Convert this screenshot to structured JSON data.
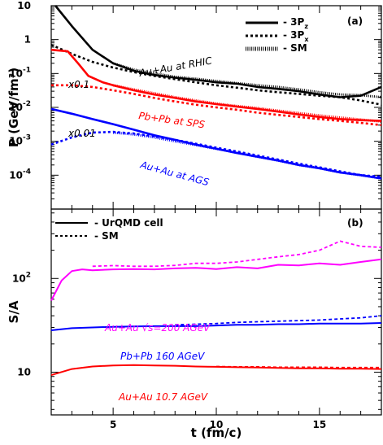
{
  "chart_data": [
    {
      "panel": "(a)",
      "type": "line",
      "xlim": [
        2,
        18
      ],
      "yscale": "log",
      "ylim": [
        1e-05,
        10
      ],
      "ylabel": "P (GeV/fm³)",
      "legend_placement": "top-right",
      "legend": [
        {
          "label": "- 3P",
          "sub": "z",
          "style": "solid"
        },
        {
          "label": "- 3P",
          "sub": "x",
          "style": "dashed"
        },
        {
          "label": "- SM",
          "style": "dotted"
        }
      ],
      "ytick_labels": [
        {
          "base": "10",
          "exp": ""
        },
        {
          "base": "1",
          "exp": ""
        },
        {
          "base": "10",
          "exp": "-1"
        },
        {
          "base": "10",
          "exp": "-2"
        },
        {
          "base": "10",
          "exp": "-3"
        },
        {
          "base": "10",
          "exp": "-4"
        }
      ],
      "annotations": [
        {
          "text": "Au+Au at RHIC",
          "color": "#000000"
        },
        {
          "text": "Pb+Pb at SPS",
          "color": "#ff0000"
        },
        {
          "text": "Au+Au at AGS",
          "color": "#0000ff"
        },
        {
          "text": "x0.1",
          "color": "#000000"
        },
        {
          "text": "x0.01",
          "color": "#000000"
        }
      ],
      "series": [
        {
          "group": "RHIC",
          "kind": "3Pz",
          "color": "#000000",
          "x": [
            2.2,
            3,
            4,
            5,
            6,
            7,
            8,
            9,
            10,
            11,
            12,
            13,
            14,
            15,
            16,
            17,
            18
          ],
          "y": [
            12,
            2.5,
            0.5,
            0.2,
            0.12,
            0.09,
            0.075,
            0.065,
            0.055,
            0.05,
            0.04,
            0.035,
            0.03,
            0.024,
            0.02,
            0.022,
            0.04
          ]
        },
        {
          "group": "RHIC",
          "kind": "3Px",
          "color": "#000000",
          "x": [
            2,
            3,
            4,
            5,
            6,
            7,
            8,
            9,
            10,
            11,
            12,
            13,
            14,
            15,
            16,
            17,
            18
          ],
          "y": [
            0.7,
            0.38,
            0.22,
            0.15,
            0.11,
            0.085,
            0.068,
            0.055,
            0.045,
            0.038,
            0.032,
            0.028,
            0.025,
            0.022,
            0.02,
            0.016,
            0.012
          ]
        },
        {
          "group": "RHIC",
          "kind": "SM",
          "color": "#000000",
          "x": [
            5,
            6,
            7,
            8,
            9,
            10,
            11,
            12,
            13,
            14,
            15,
            16,
            17,
            18
          ],
          "y": [
            0.2,
            0.13,
            0.1,
            0.08,
            0.07,
            0.06,
            0.052,
            0.045,
            0.04,
            0.034,
            0.028,
            0.024,
            0.023,
            0.02
          ]
        },
        {
          "group": "SPS",
          "kind": "3Pz",
          "color": "#ff0000",
          "x": [
            2,
            2.8,
            3.3,
            3.8,
            4.5,
            5,
            6,
            7,
            8,
            9,
            10,
            11,
            12,
            13,
            14,
            15,
            16,
            17,
            18
          ],
          "y": [
            0.5,
            0.45,
            0.2,
            0.085,
            0.055,
            0.045,
            0.032,
            0.024,
            0.019,
            0.015,
            0.0125,
            0.0105,
            0.009,
            0.0075,
            0.0062,
            0.0052,
            0.0045,
            0.0042,
            0.004
          ]
        },
        {
          "group": "SPS",
          "kind": "3Px",
          "color": "#ff0000",
          "x": [
            2,
            3,
            4,
            5,
            6,
            7,
            8,
            9,
            10,
            11,
            12,
            13,
            14,
            15,
            16,
            17,
            18
          ],
          "y": [
            0.045,
            0.045,
            0.04,
            0.032,
            0.025,
            0.019,
            0.015,
            0.012,
            0.01,
            0.0085,
            0.007,
            0.006,
            0.0052,
            0.0045,
            0.004,
            0.0035,
            0.003
          ]
        },
        {
          "group": "SPS",
          "kind": "SM",
          "color": "#ff0000",
          "x": [
            5,
            6,
            7,
            8,
            9,
            10,
            11,
            12,
            13,
            14,
            15,
            16,
            17,
            18
          ],
          "y": [
            0.045,
            0.034,
            0.026,
            0.02,
            0.016,
            0.013,
            0.011,
            0.0095,
            0.008,
            0.0068,
            0.0058,
            0.005,
            0.0044,
            0.0038
          ]
        },
        {
          "group": "AGS",
          "kind": "3Pz",
          "color": "#0000ff",
          "x": [
            2,
            3,
            4,
            5,
            6,
            7,
            8,
            9,
            10,
            11,
            12,
            13,
            14,
            15,
            16,
            17,
            18
          ],
          "y": [
            0.009,
            0.0065,
            0.0045,
            0.0032,
            0.0022,
            0.0015,
            0.0011,
            0.0008,
            0.0006,
            0.00045,
            0.00035,
            0.00027,
            0.0002,
            0.00016,
            0.00012,
            0.0001,
            8e-05
          ]
        },
        {
          "group": "AGS",
          "kind": "3Px",
          "color": "#0000ff",
          "x": [
            2,
            3,
            4,
            5,
            6,
            7,
            8,
            9,
            10,
            11,
            12,
            13,
            14,
            15,
            16,
            17,
            18
          ],
          "y": [
            0.0008,
            0.0013,
            0.0018,
            0.0019,
            0.0017,
            0.0014,
            0.0011,
            0.00085,
            0.00065,
            0.0005,
            0.00038,
            0.00029,
            0.00022,
            0.00017,
            0.00013,
            0.0001,
            9e-05
          ]
        },
        {
          "group": "AGS",
          "kind": "SM",
          "color": "#0000ff",
          "x": [
            5,
            6,
            7,
            8,
            9,
            10,
            11,
            12,
            13,
            14,
            15,
            16,
            17,
            18
          ],
          "y": [
            0.0018,
            0.0016,
            0.0013,
            0.001,
            0.00078,
            0.0006,
            0.00046,
            0.00035,
            0.00027,
            0.0002,
            0.00016,
            0.00012,
            0.0001,
            8e-05
          ]
        }
      ]
    },
    {
      "panel": "(b)",
      "type": "line",
      "xlim": [
        2,
        18
      ],
      "yscale": "log",
      "ylim": [
        3.5,
        550
      ],
      "ylabel": "S/A",
      "xlabel": "t (fm/c)",
      "xtick_labels": [
        "5",
        "10",
        "15"
      ],
      "legend_placement": "top-left",
      "legend": [
        {
          "label": "- UrQMD cell",
          "style": "solid"
        },
        {
          "label": "- SM",
          "style": "dashed"
        }
      ],
      "ytick_labels": [
        {
          "base": "10",
          "exp": "2"
        },
        {
          "base": "10",
          "exp": ""
        }
      ],
      "annotations": [
        {
          "text": "Au+Au  √s=200 AGeV",
          "color": "#ff00ff"
        },
        {
          "text": "Pb+Pb 160 AGeV",
          "color": "#0000ff"
        },
        {
          "text": "Au+Au 10.7 AGeV",
          "color": "#ff0000"
        }
      ],
      "series": [
        {
          "group": "200 AGeV",
          "kind": "UrQMD cell",
          "color": "#ff00ff",
          "x": [
            2,
            2.5,
            3,
            3.5,
            4,
            5,
            6,
            7,
            8,
            9,
            10,
            11,
            12,
            13,
            14,
            15,
            16,
            17,
            18
          ],
          "y": [
            58,
            95,
            120,
            125,
            122,
            125,
            126,
            125,
            128,
            130,
            126,
            132,
            128,
            140,
            138,
            145,
            140,
            150,
            160
          ]
        },
        {
          "group": "200 AGeV",
          "kind": "SM",
          "color": "#ff00ff",
          "x": [
            4,
            5,
            6,
            7,
            8,
            9,
            10,
            11,
            12,
            13,
            14,
            15,
            16,
            17,
            18
          ],
          "y": [
            135,
            137,
            135,
            135,
            138,
            145,
            145,
            150,
            160,
            170,
            180,
            200,
            250,
            220,
            215
          ]
        },
        {
          "group": "160 AGeV",
          "kind": "UrQMD cell",
          "color": "#0000ff",
          "x": [
            2,
            3,
            4,
            5,
            6,
            7,
            8,
            9,
            10,
            11,
            12,
            13,
            14,
            15,
            16,
            17,
            18
          ],
          "y": [
            28,
            29.5,
            30,
            30.5,
            30.8,
            31,
            31,
            31,
            31.5,
            32,
            32,
            32.5,
            32.5,
            33,
            33,
            33,
            33.5
          ]
        },
        {
          "group": "160 AGeV",
          "kind": "SM",
          "color": "#0000ff",
          "x": [
            8,
            9,
            10,
            11,
            12,
            13,
            14,
            15,
            16,
            17,
            18
          ],
          "y": [
            32,
            32.5,
            33,
            34,
            34.5,
            35,
            35.5,
            36,
            37,
            38,
            40
          ]
        },
        {
          "group": "10.7 AGeV",
          "kind": "UrQMD cell",
          "color": "#ff0000",
          "x": [
            2,
            3,
            4,
            5,
            6,
            7,
            8,
            9,
            10,
            11,
            12,
            13,
            14,
            15,
            16,
            17,
            18
          ],
          "y": [
            9.3,
            10.8,
            11.5,
            11.8,
            11.9,
            11.8,
            11.7,
            11.5,
            11.4,
            11.3,
            11.2,
            11.1,
            11,
            11,
            10.9,
            10.9,
            10.8
          ]
        },
        {
          "group": "10.7 AGeV",
          "kind": "SM",
          "color": "#ff0000",
          "x": [
            10,
            11,
            12,
            13,
            14,
            15,
            16,
            17,
            18
          ],
          "y": [
            11.5,
            11.4,
            11.4,
            11.3,
            11.3,
            11.3,
            11.2,
            11.2,
            11.2
          ]
        }
      ]
    }
  ]
}
